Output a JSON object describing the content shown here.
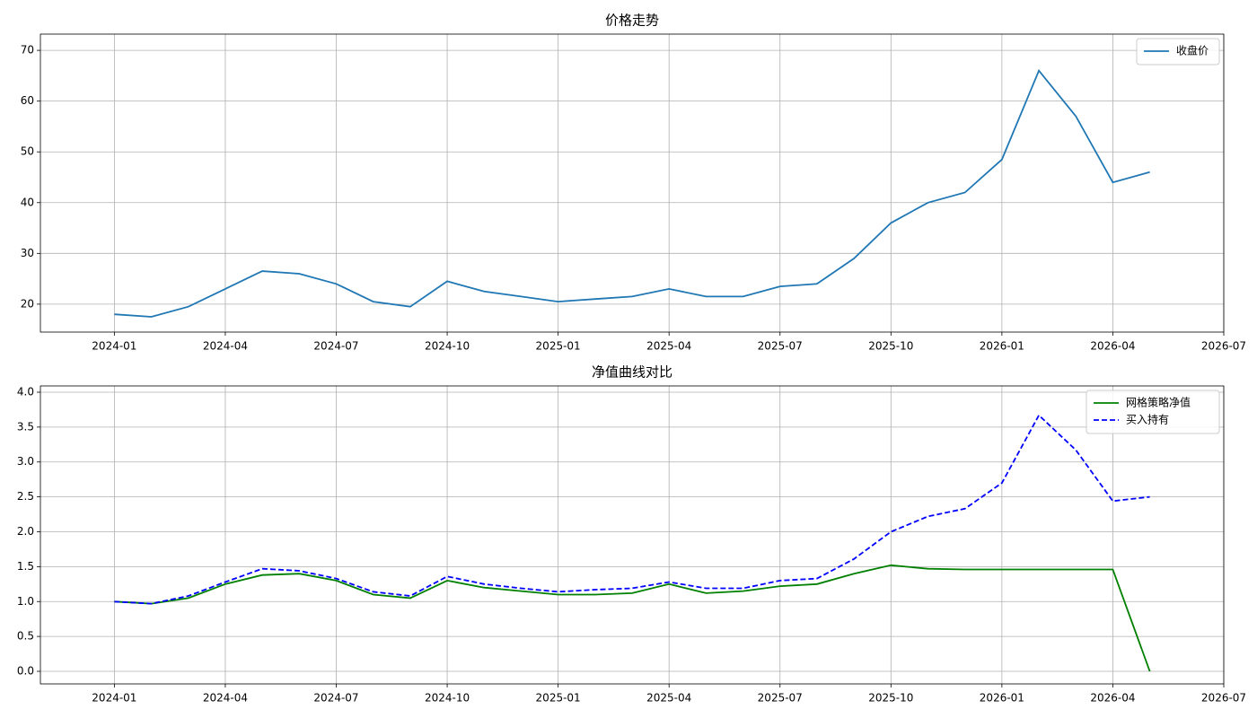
{
  "chart_data": [
    {
      "type": "line",
      "title": "价格走势",
      "x": [
        "2024-01",
        "2024-02",
        "2024-03",
        "2024-04",
        "2024-05",
        "2024-06",
        "2024-07",
        "2024-08",
        "2024-09",
        "2024-10",
        "2024-11",
        "2024-12",
        "2025-01",
        "2025-02",
        "2025-03",
        "2025-04",
        "2025-05",
        "2025-06",
        "2025-07",
        "2025-08",
        "2025-09",
        "2025-10",
        "2025-11",
        "2025-12",
        "2026-01",
        "2026-02",
        "2026-03",
        "2026-04",
        "2026-05"
      ],
      "series": [
        {
          "name": "收盘价",
          "color": "#1f77b4",
          "linestyle": "solid",
          "values": [
            18,
            17.5,
            19.5,
            23,
            26.5,
            26,
            24,
            20.5,
            19.5,
            24.5,
            22.5,
            21.5,
            20.5,
            21,
            21.5,
            23,
            21.5,
            21.5,
            23.5,
            24,
            29,
            36,
            40,
            42,
            48.5,
            66,
            57,
            44,
            46
          ]
        }
      ],
      "xlim": [
        "2023-11",
        "2026-07"
      ],
      "xticks": [
        "2024-01",
        "2024-04",
        "2024-07",
        "2024-10",
        "2025-01",
        "2025-04",
        "2025-07",
        "2025-10",
        "2026-01",
        "2026-04",
        "2026-07"
      ],
      "ylim": [
        14.5,
        73.2
      ],
      "yticks": [
        20,
        30,
        40,
        50,
        60,
        70
      ],
      "grid": true,
      "legend": "upper right"
    },
    {
      "type": "line",
      "title": "净值曲线对比",
      "x": [
        "2024-01",
        "2024-02",
        "2024-03",
        "2024-04",
        "2024-05",
        "2024-06",
        "2024-07",
        "2024-08",
        "2024-09",
        "2024-10",
        "2024-11",
        "2024-12",
        "2025-01",
        "2025-02",
        "2025-03",
        "2025-04",
        "2025-05",
        "2025-06",
        "2025-07",
        "2025-08",
        "2025-09",
        "2025-10",
        "2025-11",
        "2025-12",
        "2026-01",
        "2026-02",
        "2026-03",
        "2026-04",
        "2026-05"
      ],
      "series": [
        {
          "name": "网格策略净值",
          "color": "#008000",
          "linestyle": "solid",
          "values": [
            1.0,
            0.97,
            1.05,
            1.25,
            1.38,
            1.4,
            1.3,
            1.1,
            1.05,
            1.3,
            1.2,
            1.15,
            1.1,
            1.1,
            1.12,
            1.25,
            1.12,
            1.15,
            1.22,
            1.25,
            1.4,
            1.52,
            1.47,
            1.46,
            1.46,
            1.46,
            1.46,
            1.46,
            0
          ]
        },
        {
          "name": "买入持有",
          "color": "#0000ff",
          "linestyle": "dashed",
          "values": [
            1.0,
            0.97,
            1.08,
            1.28,
            1.47,
            1.44,
            1.33,
            1.14,
            1.08,
            1.36,
            1.25,
            1.19,
            1.14,
            1.17,
            1.19,
            1.28,
            1.19,
            1.19,
            1.3,
            1.33,
            1.61,
            2.0,
            2.22,
            2.33,
            2.7,
            3.67,
            3.17,
            2.44,
            2.5
          ]
        }
      ],
      "xlim": [
        "2023-11",
        "2026-07"
      ],
      "xticks": [
        "2024-01",
        "2024-04",
        "2024-07",
        "2024-10",
        "2025-01",
        "2025-04",
        "2025-07",
        "2025-10",
        "2026-01",
        "2026-04",
        "2026-07"
      ],
      "ylim": [
        -0.18,
        4.09
      ],
      "yticks": [
        {
          "value": 0,
          "label": "0.0"
        },
        0.5,
        {
          "value": 1,
          "label": "1.0"
        },
        1.5,
        {
          "value": 2,
          "label": "2.0"
        },
        2.5,
        {
          "value": 3,
          "label": "3.0"
        },
        3.5,
        {
          "value": 4,
          "label": "4.0"
        }
      ],
      "grid": true,
      "legend": "upper right"
    }
  ]
}
